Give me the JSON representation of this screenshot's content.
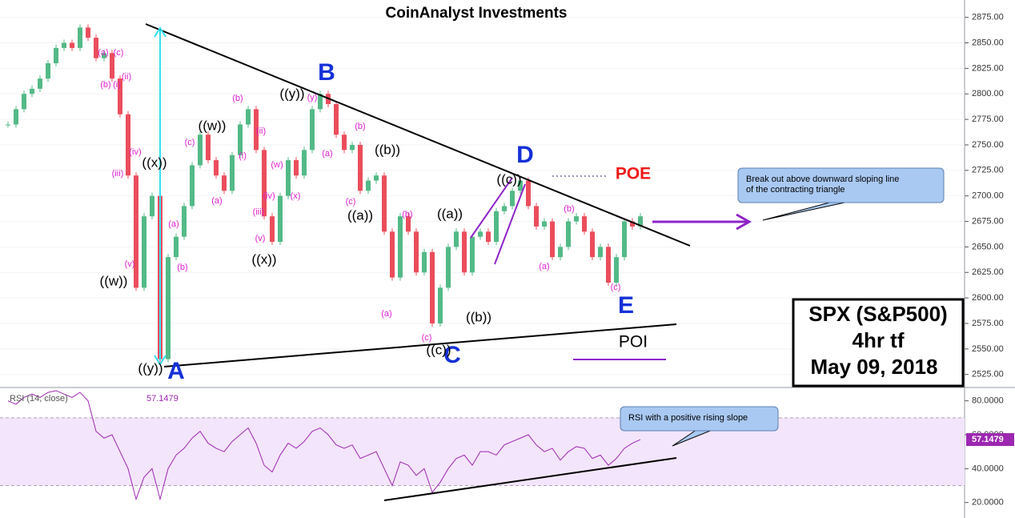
{
  "chart_data": [
    {
      "type": "candlestick",
      "title": "CoinAnalyst Investments",
      "up_color": "#53b987",
      "down_color": "#eb4d5c",
      "values": [
        2770,
        2785,
        2800,
        2805,
        2815,
        2830,
        2845,
        2850,
        2845,
        2865,
        2855,
        2835,
        2840,
        2815,
        2780,
        2720,
        2610,
        2680,
        2700,
        2540,
        2640,
        2660,
        2690,
        2730,
        2760,
        2735,
        2720,
        2705,
        2740,
        2770,
        2785,
        2745,
        2680,
        2655,
        2700,
        2735,
        2720,
        2745,
        2785,
        2800,
        2790,
        2760,
        2745,
        2750,
        2705,
        2715,
        2720,
        2665,
        2620,
        2680,
        2665,
        2625,
        2645,
        2575,
        2610,
        2650,
        2665,
        2625,
        2660,
        2665,
        2655,
        2685,
        2690,
        2705,
        2715,
        2690,
        2670,
        2675,
        2640,
        2650,
        2675,
        2680,
        2665,
        2640,
        2650,
        2615,
        2640,
        2675,
        2670,
        2680
      ],
      "ylim": [
        2513,
        2892
      ],
      "yticks": [
        {
          "value": 2525,
          "label": "2525.00"
        },
        {
          "value": 2550,
          "label": "2550.00"
        },
        {
          "value": 2575,
          "label": "2575.00"
        },
        {
          "value": 2600,
          "label": "2600.00"
        },
        {
          "value": 2625,
          "label": "2625.00"
        },
        {
          "value": 2650,
          "label": "2650.00"
        },
        {
          "value": 2675,
          "label": "2675.00"
        },
        {
          "value": 2700,
          "label": "2700.00"
        },
        {
          "value": 2725,
          "label": "2725.00"
        },
        {
          "value": 2750,
          "label": "2750.00"
        },
        {
          "value": 2775,
          "label": "2775.00"
        },
        {
          "value": 2800,
          "label": "2800.00"
        },
        {
          "value": 2825,
          "label": "2825.00"
        },
        {
          "value": 2850,
          "label": "2850.00"
        },
        {
          "value": 2875,
          "label": "2875.00"
        }
      ],
      "grid": true
    },
    {
      "type": "line",
      "title": "RSI (14, close)",
      "color": "#9c27b0",
      "band": [
        30,
        70
      ],
      "band_color": "#f3e5fb",
      "values": [
        80,
        78,
        82,
        84,
        82,
        85,
        86,
        84,
        82,
        85,
        80,
        62,
        58,
        60,
        50,
        40,
        22,
        35,
        40,
        22,
        40,
        48,
        52,
        58,
        62,
        55,
        52,
        50,
        56,
        60,
        64,
        55,
        42,
        38,
        48,
        55,
        52,
        56,
        62,
        64,
        60,
        54,
        52,
        54,
        46,
        48,
        50,
        40,
        30,
        44,
        42,
        36,
        40,
        26,
        32,
        40,
        46,
        48,
        42,
        50,
        50,
        48,
        54,
        56,
        58,
        60,
        54,
        50,
        52,
        45,
        50,
        53,
        52,
        46,
        48,
        42,
        46,
        52,
        55,
        57.1479
      ],
      "ylim": [
        15.6,
        87.4
      ],
      "yticks": [
        {
          "value": 20,
          "label": "20.0000"
        },
        {
          "value": 40,
          "label": "40.0000"
        },
        {
          "value": 60,
          "label": "60.0000"
        },
        {
          "value": 80,
          "label": "80.0000"
        }
      ]
    }
  ],
  "annotations": {
    "points": [
      "A",
      "B",
      "C",
      "D",
      "E"
    ],
    "waves": [
      "((w))",
      "((x))",
      "((y))",
      "((w))",
      "((x))",
      "((y))",
      "((a))",
      "((b))",
      "((a))",
      "((b))",
      "((c))",
      "((c))"
    ],
    "subwaves": [
      "(a)",
      "(c)",
      "(b)",
      "(i)",
      "(ii)",
      "(iv)",
      "(iii)",
      "(v)",
      "(a)",
      "(b)",
      "(c)",
      "(a)",
      "(i)",
      "(b)",
      "(ii)",
      "(iv)",
      "(iii)",
      "(v)",
      "(w)",
      "(x)",
      "(y)",
      "(a)",
      "(b)",
      "(c)",
      "(a)",
      "(b)",
      "(c)",
      "(a)",
      "(b)",
      "(c)"
    ],
    "poe": "POE",
    "poi": "POI",
    "callouts": [
      "Break out above downward sloping line",
      "of the contracting triangle",
      "RSI with a positive rising slope"
    ],
    "info": [
      "SPX (S&P500)",
      "4hr tf",
      "May 09, 2018"
    ]
  }
}
